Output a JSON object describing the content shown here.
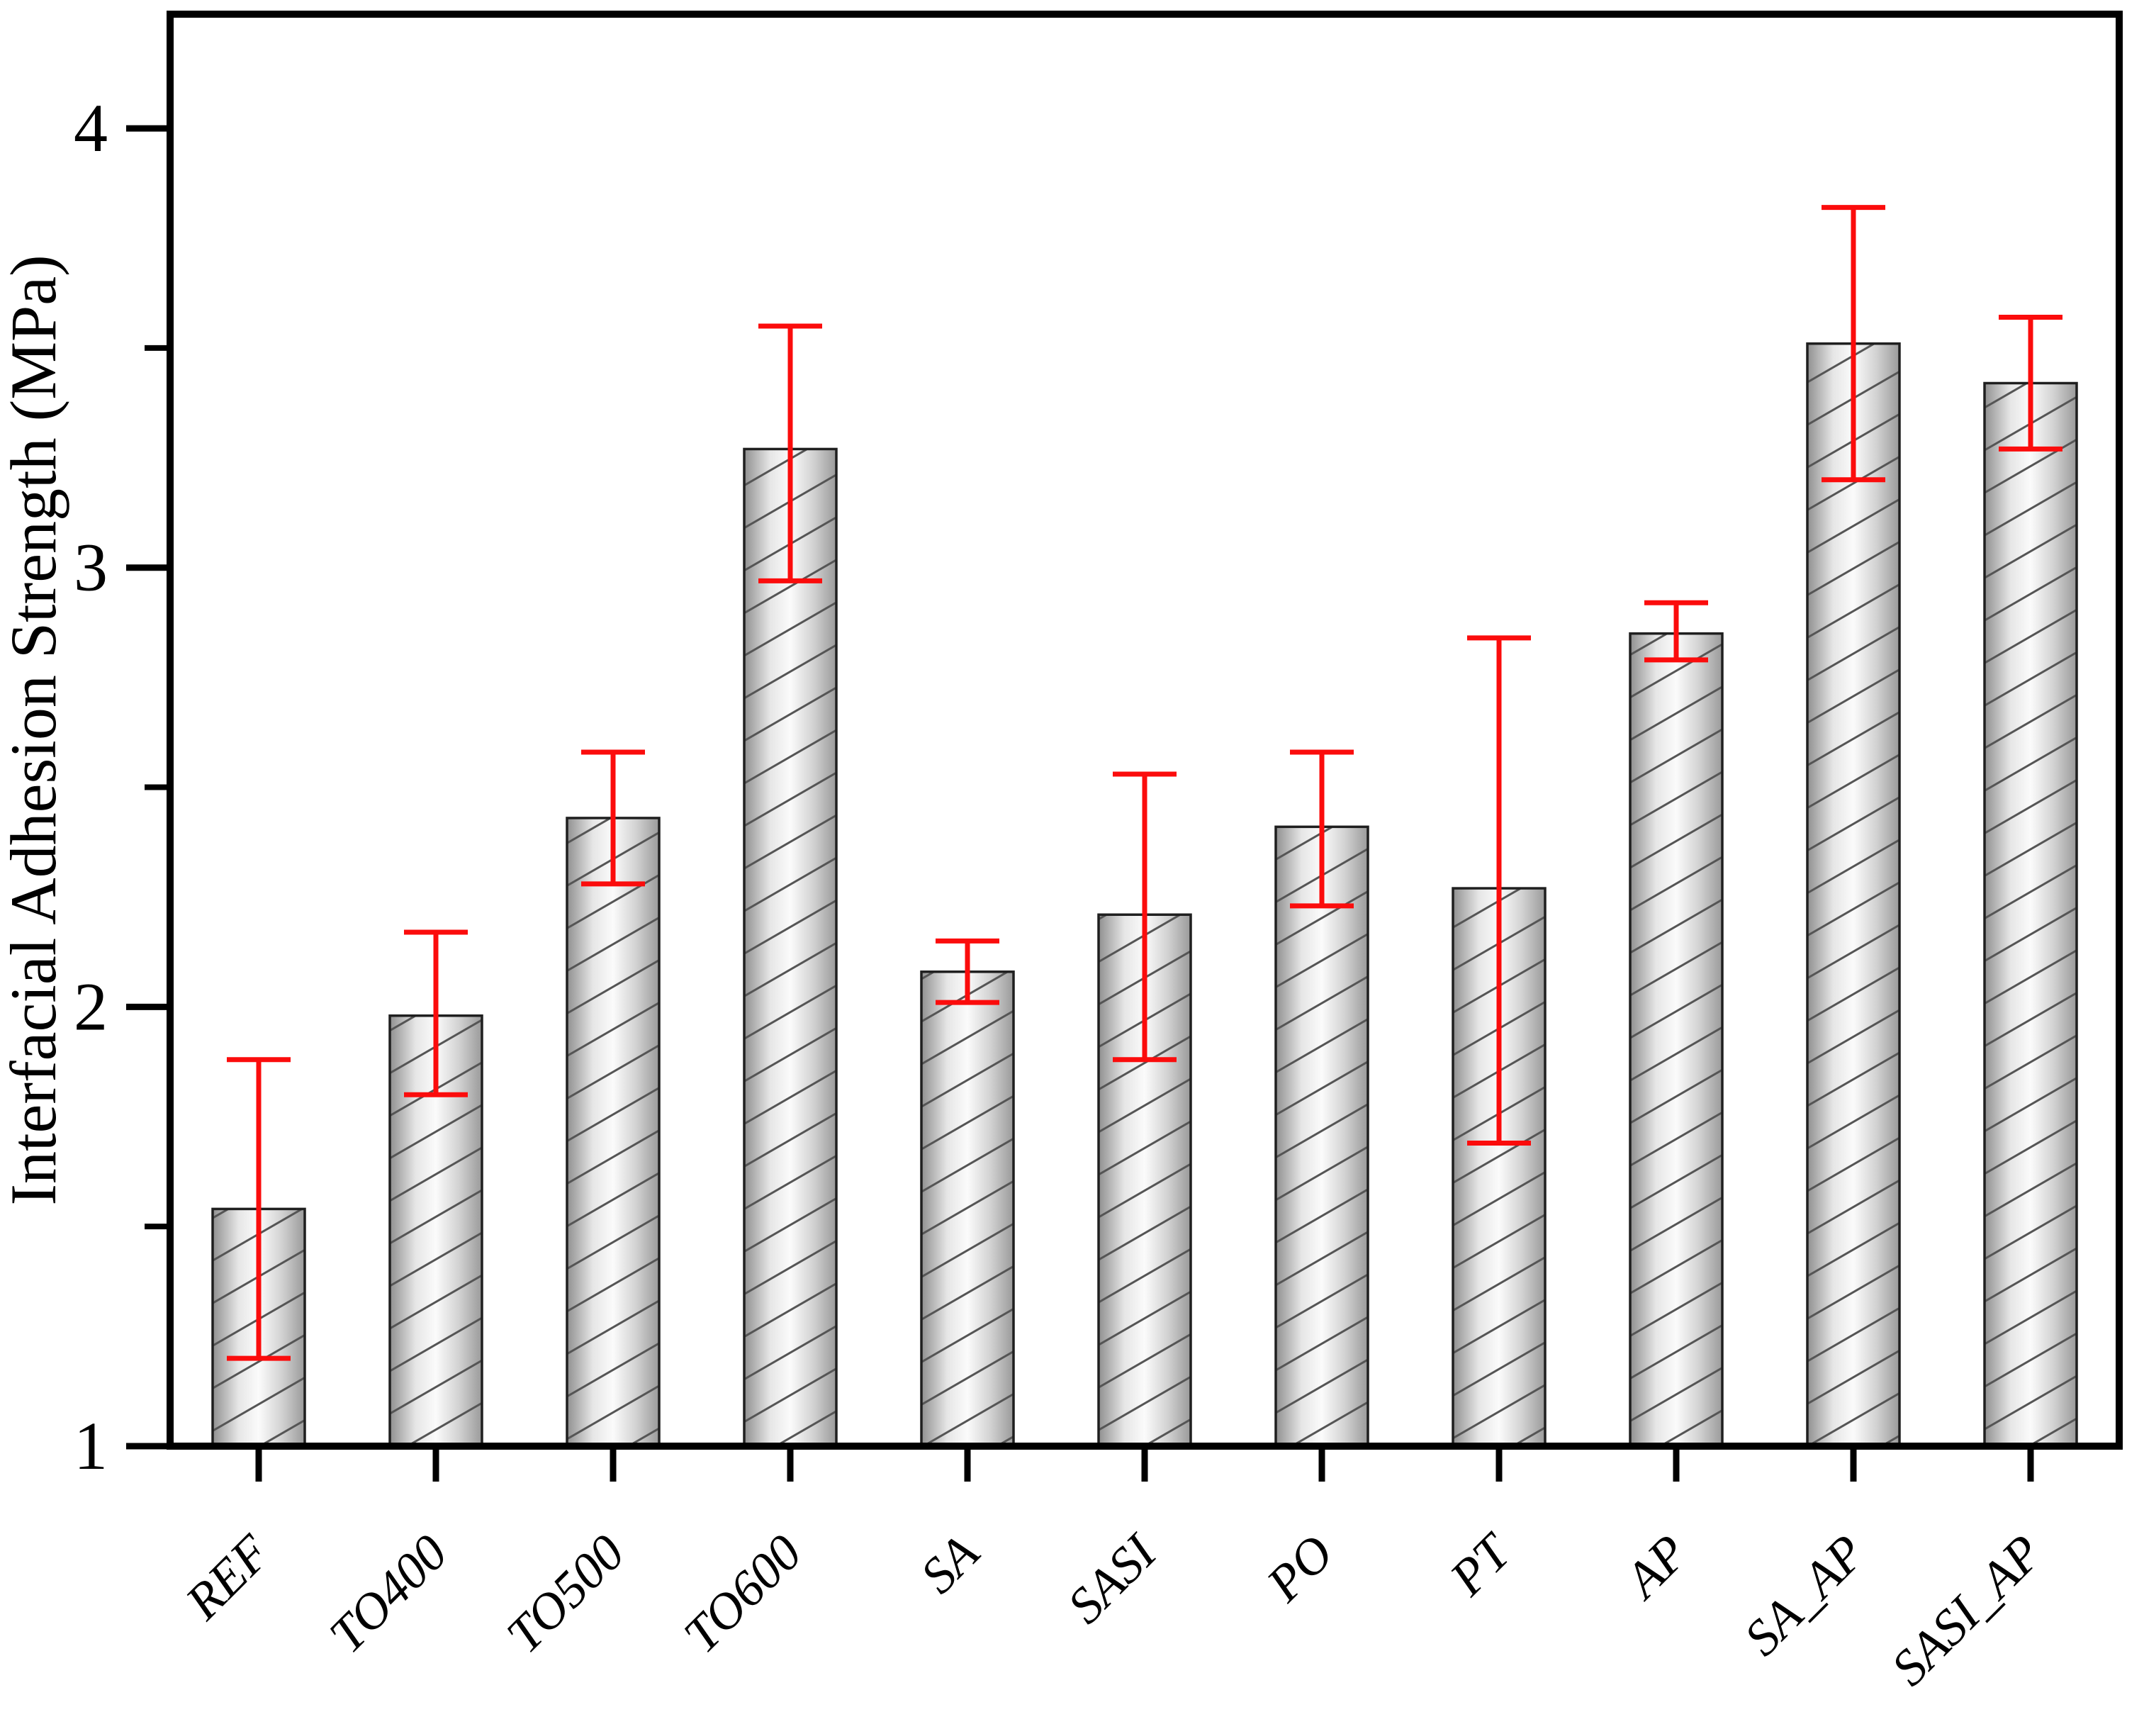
{
  "chart_data": {
    "type": "bar",
    "title": "",
    "xlabel": "",
    "ylabel": "Interfacial Adhesion Strength (MPa)",
    "ylim": [
      1,
      4.26
    ],
    "yticks_major": [
      1,
      2,
      3,
      4
    ],
    "yticks_minor": [
      1.5,
      2.5,
      3.5
    ],
    "grid": false,
    "legend_position": "none",
    "categories": [
      "REF",
      "TO400",
      "TO500",
      "TO600",
      "SA",
      "SASI",
      "PO",
      "PT",
      "AP",
      "SA_AP",
      "SASI_AP"
    ],
    "series": [
      {
        "name": "Interfacial Adhesion Strength (MPa)",
        "values": [
          1.54,
          1.98,
          2.43,
          3.27,
          2.08,
          2.21,
          2.41,
          2.27,
          2.85,
          3.51,
          3.42
        ],
        "errors_plus": [
          0.34,
          0.19,
          0.15,
          0.28,
          0.07,
          0.32,
          0.17,
          0.57,
          0.07,
          0.31,
          0.15
        ],
        "errors_minus": [
          0.34,
          0.18,
          0.15,
          0.3,
          0.07,
          0.33,
          0.18,
          0.58,
          0.06,
          0.31,
          0.15
        ]
      }
    ],
    "colors": {
      "error_bar": "#fb0c0c",
      "bar_edge": "#1f1f1f",
      "bar_hatch": "#555555",
      "bar_fill_dark": "#909090",
      "bar_fill_light": "#fbfbfb",
      "axis": "#000000"
    },
    "bar_style": "diagonal-hatch with cylindrical gray gradient"
  }
}
